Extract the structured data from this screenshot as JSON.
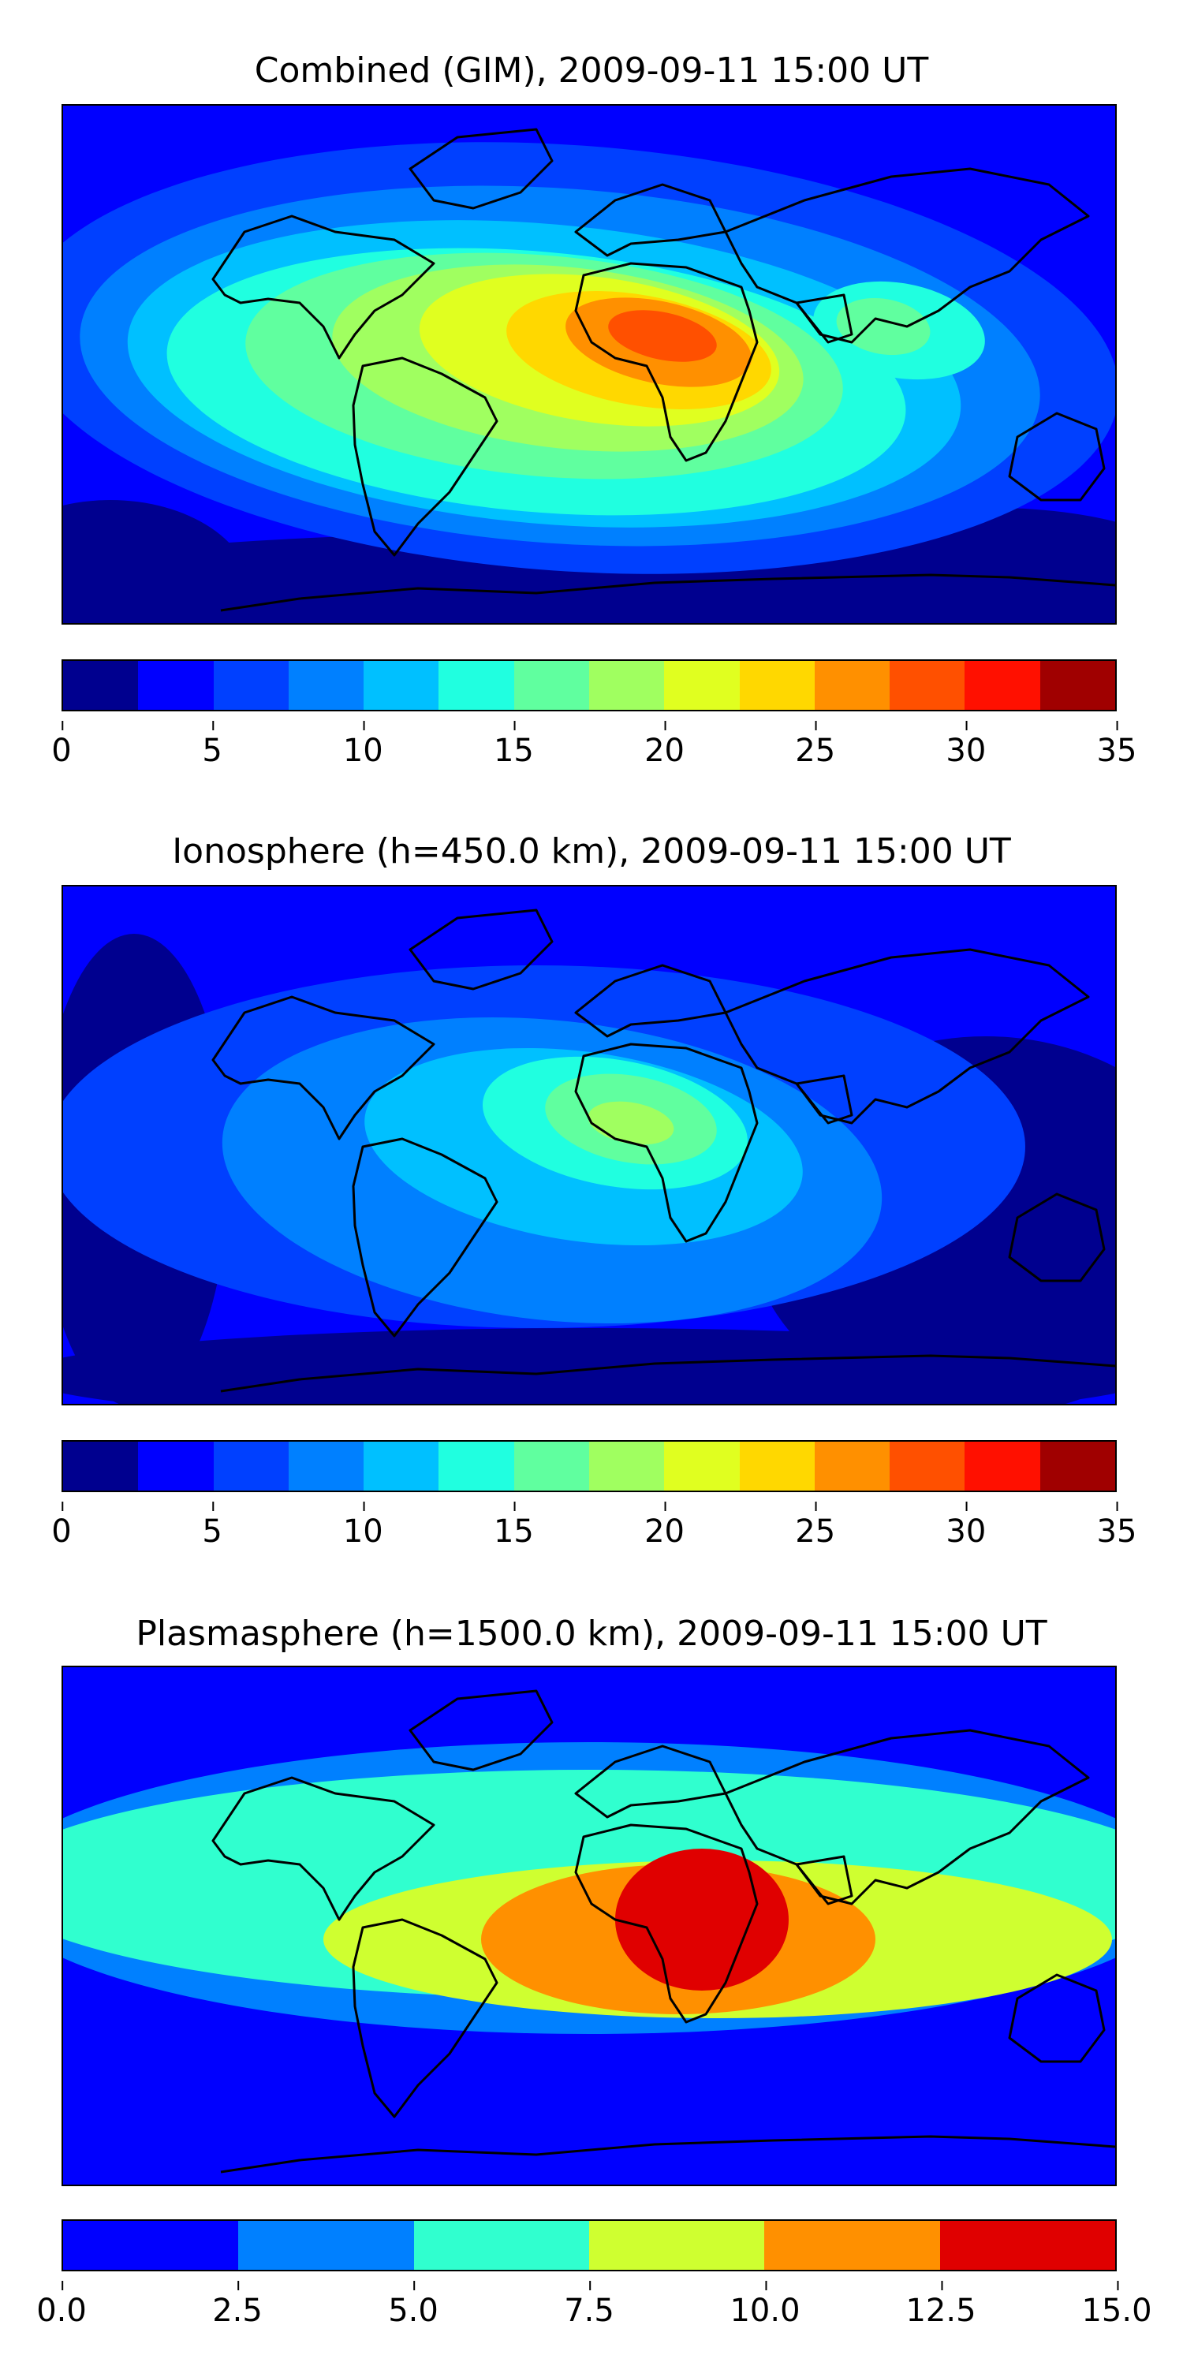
{
  "chart_data": [
    {
      "type": "heatmap",
      "title": "Combined (GIM), 2009-09-11 15:00 UT",
      "colorbar": {
        "ticks": [
          "0",
          "5",
          "10",
          "15",
          "20",
          "25",
          "30",
          "35"
        ],
        "levels": [
          0,
          2.5,
          5,
          7.5,
          10,
          12.5,
          15,
          17.5,
          20,
          22.5,
          25,
          27.5,
          30,
          32.5,
          35
        ],
        "colors": [
          "#00008f",
          "#0000ff",
          "#0040ff",
          "#0080ff",
          "#00c0ff",
          "#20ffe0",
          "#60ff9f",
          "#a0ff60",
          "#e0ff20",
          "#ffd800",
          "#ff9000",
          "#ff5000",
          "#ff1000",
          "#a00000"
        ]
      },
      "field": {
        "background_level": 1,
        "peak_value": 32,
        "peak_location": "North Africa / Arabia"
      }
    },
    {
      "type": "heatmap",
      "title": "Ionosphere  (h=450.0 km), 2009-09-11 15:00 UT",
      "colorbar": {
        "ticks": [
          "0",
          "5",
          "10",
          "15",
          "20",
          "25",
          "30",
          "35"
        ],
        "levels": [
          0,
          2.5,
          5,
          7.5,
          10,
          12.5,
          15,
          17.5,
          20,
          22.5,
          25,
          27.5,
          30,
          32.5,
          35
        ],
        "colors": [
          "#00008f",
          "#0000ff",
          "#0040ff",
          "#0080ff",
          "#00c0ff",
          "#20ffe0",
          "#60ff9f",
          "#a0ff60",
          "#e0ff20",
          "#ffd800",
          "#ff9000",
          "#ff5000",
          "#ff1000",
          "#a00000"
        ]
      },
      "field": {
        "background_level": 1,
        "peak_value": 19,
        "peak_location": "Central / West Africa"
      }
    },
    {
      "type": "heatmap",
      "title": "Plasmasphere (h=1500.0 km), 2009-09-11 15:00 UT",
      "colorbar": {
        "ticks": [
          "0.0",
          "2.5",
          "5.0",
          "7.5",
          "10.0",
          "12.5",
          "15.0"
        ],
        "levels": [
          0,
          2.5,
          5,
          7.5,
          10,
          12.5,
          15
        ],
        "colors": [
          "#0000ff",
          "#0080ff",
          "#30ffcf",
          "#cfff30",
          "#ff9000",
          "#e00000"
        ]
      },
      "field": {
        "background_level": 0,
        "peak_value": 13,
        "peak_location": "East Africa"
      }
    }
  ]
}
